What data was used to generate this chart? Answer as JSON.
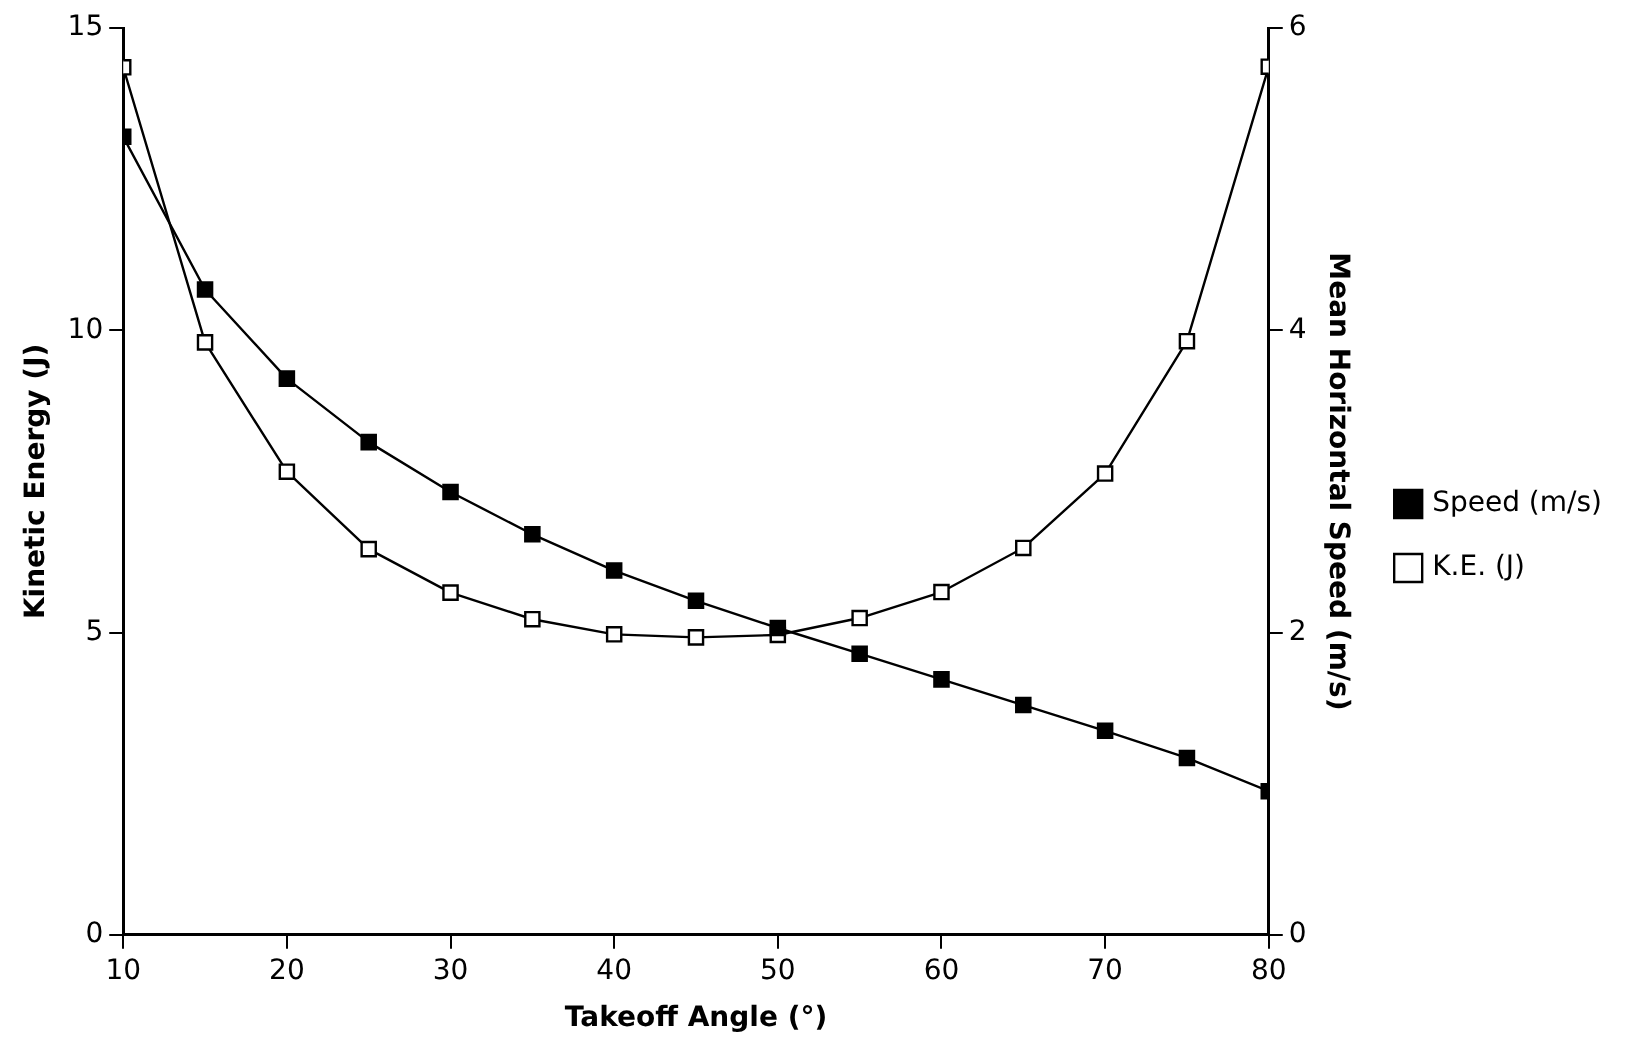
{
  "chart_data": {
    "type": "line",
    "xlabel": "Takeoff Angle (°)",
    "ylabel": "Kinetic Energy (J)",
    "y2label": "Mean Horizontal Speed (m/s)",
    "x": [
      10,
      15,
      20,
      25,
      30,
      35,
      40,
      45,
      50,
      55,
      60,
      65,
      70,
      75,
      80
    ],
    "series": [
      {
        "name": "K.E. (J)",
        "color": "#000000",
        "values": [
          14.35,
          9.8,
          7.66,
          6.38,
          5.66,
          5.22,
          4.97,
          4.92,
          4.96,
          5.24,
          5.67,
          6.4,
          7.63,
          9.82,
          14.36
        ]
      },
      {
        "name": "Speed (m/s)",
        "color": "#000000",
        "axis": "y2",
        "values": [
          5.28,
          4.27,
          3.68,
          3.26,
          2.93,
          2.65,
          2.41,
          2.21,
          2.03,
          1.86,
          1.69,
          1.52,
          1.35,
          1.17,
          0.95
        ]
      }
    ],
    "xlim": [
      10,
      80
    ],
    "xticks": [
      10,
      20,
      30,
      40,
      50,
      60,
      70,
      80
    ],
    "ylim": [
      0,
      15
    ],
    "yticks": [
      0,
      5,
      10,
      15
    ],
    "y2lim": [
      0,
      6
    ],
    "y2ticks": [
      0,
      2,
      4,
      6
    ],
    "grid": false,
    "legend": "right",
    "marker": "square",
    "line_style": "solid"
  }
}
